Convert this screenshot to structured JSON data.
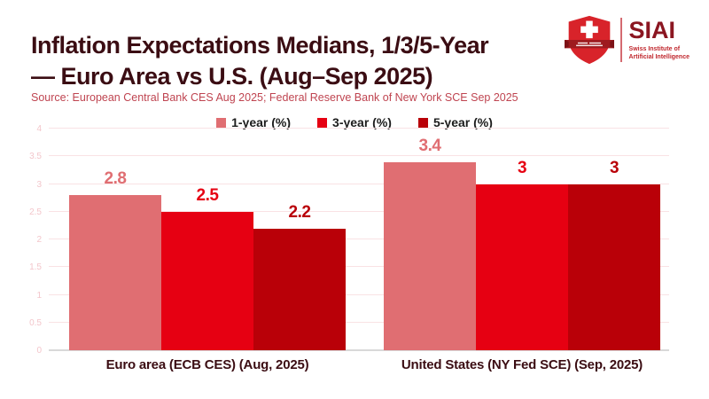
{
  "header": {
    "title_line1": "Inflation Expectations Medians, 1/3/5-Year",
    "title_line2": "— Euro Area vs U.S. (Aug–Sep 2025)",
    "logo": {
      "acronym": "SIAI",
      "tagline_line1": "Swiss Institute of",
      "tagline_line2": "Artificial Intelligence"
    }
  },
  "source_line": "Source: European Central Bank CES Aug 2025; Federal Reserve Bank of New York SCE Sep 2025",
  "chart_data": {
    "type": "bar",
    "title": "Inflation Expectations Medians, 1/3/5-Year — Euro Area vs U.S. (Aug–Sep 2025)",
    "categories": [
      "Euro area (ECB CES) (Aug, 2025)",
      "United States (NY Fed SCE) (Sep, 2025)"
    ],
    "series": [
      {
        "name": "1-year (%)",
        "color": "#e06e72",
        "values": [
          2.8,
          3.4
        ]
      },
      {
        "name": "3-year (%)",
        "color": "#e60012",
        "values": [
          2.5,
          3
        ]
      },
      {
        "name": "5-year (%)",
        "color": "#b90008",
        "values": [
          2.2,
          3
        ]
      }
    ],
    "ylim": [
      0,
      4
    ],
    "yticks": [
      0,
      0.5,
      1,
      1.5,
      2,
      2.5,
      3,
      3.5,
      4
    ],
    "grid": true,
    "legend_position": "top-center",
    "value_labels": true
  },
  "theme": {
    "title_color": "#3b0d13",
    "source_color": "#bf4450",
    "grid_color": "#f9e2e4",
    "ytick_color": "#f3c6cb",
    "axis_color": "#d9d9d9",
    "legend_text_color": "#1c1c1c",
    "logo_acronym_color": "#8b1621",
    "logo_tagline_color": "#c0272d",
    "shield_red": "#d8232a",
    "ribbon_red": "#9e1b1f"
  }
}
